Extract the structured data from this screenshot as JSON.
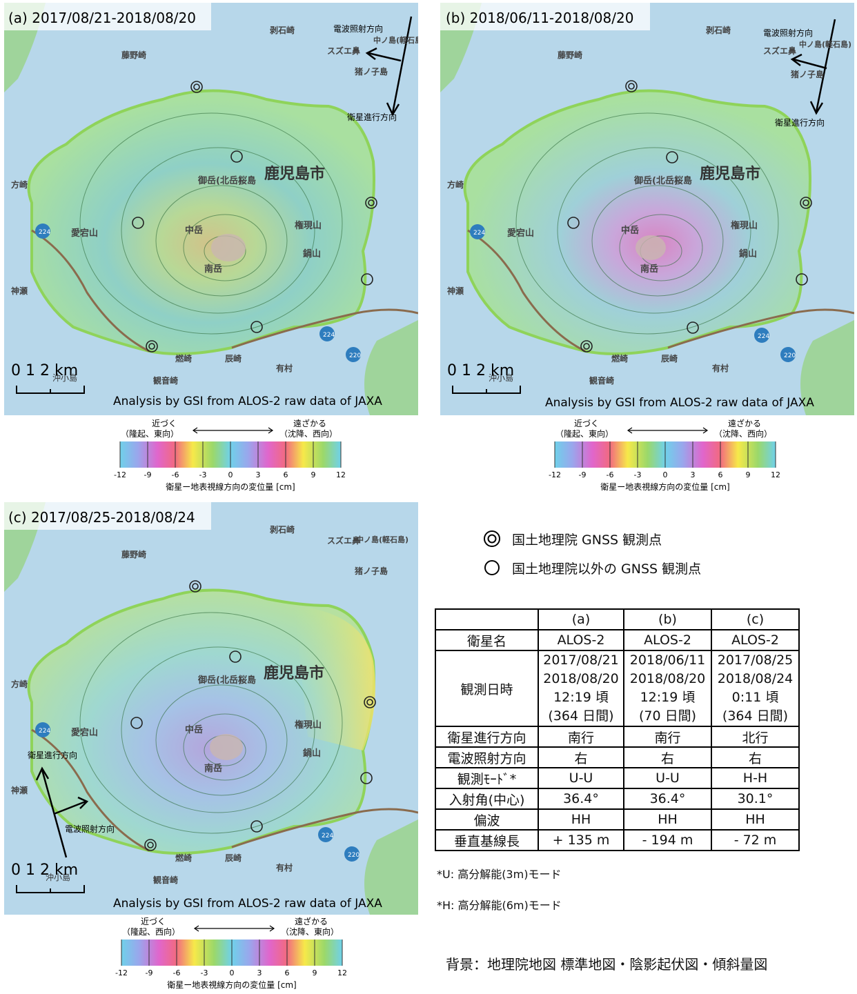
{
  "panels": [
    {
      "id": "a",
      "title": "(a) 2017/08/21-2018/08/20",
      "analysis_credit": "Analysis by GSI from ALOS-2 raw data of JAXA",
      "scale_label": "0  1  2 km",
      "sat_direction_label": "衛星進行方向",
      "radar_direction_label": "電波照射方向",
      "place_names": {
        "city": "鹿児島市",
        "kitadake": "御岳(北岳)",
        "sakurajima": "桜島",
        "nakadake": "中岳",
        "minamidake": "南岳",
        "gongenyama": "権現山",
        "nabeyama": "鍋山",
        "atagoyama": "愛宕山",
        "fujinosaki": "藤野崎",
        "sakiishizaki": "剥石崎",
        "suzue": "スズエ鼻",
        "nakanoshima": "中ノ島(軽石島)",
        "inokojima": "猪ノ子島",
        "hozaki": "方崎",
        "kamise": "神瀬",
        "tatsuzaki": "辰崎",
        "okikojima": "沖小島",
        "moe": "燃崎",
        "kannon": "観音崎",
        "arimura": "有村"
      },
      "route_labels": [
        "224",
        "224",
        "220"
      ],
      "colorbar": {
        "near_label": "近づく",
        "near_sub": "（隆起、東向）",
        "far_label": "遠ざかる",
        "far_sub": "（沈降、西向）",
        "ticks": [
          "-12",
          "-9",
          "-6",
          "-3",
          "0",
          "3",
          "6",
          "9",
          "12"
        ],
        "axis_label": "衛星ー地表視線方向の変位量 [cm]"
      }
    },
    {
      "id": "b",
      "title": "(b) 2018/06/11-2018/08/20",
      "analysis_credit": "Analysis by GSI from ALOS-2 raw data of JAXA",
      "scale_label": "0  1  2 km",
      "sat_direction_label": "衛星進行方向",
      "radar_direction_label": "電波照射方向",
      "place_names": {
        "city": "鹿児島市",
        "kitadake": "御岳(北岳)",
        "sakurajima": "桜島",
        "nakadake": "中岳",
        "minamidake": "南岳",
        "gongenyama": "権現山",
        "nabeyama": "鍋山",
        "atagoyama": "愛宕山",
        "fujinosaki": "藤野崎",
        "sakiishizaki": "剥石崎",
        "suzue": "スズエ鼻",
        "nakanoshima": "中ノ島(軽石島)",
        "inokojima": "猪ノ子島",
        "hozaki": "方崎",
        "kamise": "神瀬",
        "tatsuzaki": "辰崎",
        "okikojima": "沖小島",
        "moe": "燃崎",
        "kannon": "観音崎",
        "arimura": "有村"
      },
      "route_labels": [
        "224",
        "224",
        "220"
      ],
      "colorbar": {
        "near_label": "近づく",
        "near_sub": "（隆起、東向）",
        "far_label": "遠ざかる",
        "far_sub": "（沈降、西向）",
        "ticks": [
          "-12",
          "-9",
          "-6",
          "-3",
          "0",
          "3",
          "6",
          "9",
          "12"
        ],
        "axis_label": "衛星ー地表視線方向の変位量 [cm]"
      }
    },
    {
      "id": "c",
      "title": "(c) 2017/08/25-2018/08/24",
      "analysis_credit": "Analysis by GSI from ALOS-2 raw data of JAXA",
      "scale_label": "0  1  2 km",
      "sat_direction_label": "衛星進行方向",
      "radar_direction_label": "電波照射方向",
      "place_names": {
        "city": "鹿児島市",
        "kitadake": "御岳(北岳)",
        "sakurajima": "桜島",
        "nakadake": "中岳",
        "minamidake": "南岳",
        "gongenyama": "権現山",
        "nabeyama": "鍋山",
        "atagoyama": "愛宕山",
        "fujinosaki": "藤野崎",
        "sakiishizaki": "剥石崎",
        "suzue": "スズエ鼻",
        "nakanoshima": "中ノ島(軽石島)",
        "inokojima": "猪ノ子島",
        "hozaki": "方崎",
        "kamise": "神瀬",
        "tatsuzaki": "辰崎",
        "okikojima": "沖小島",
        "moe": "燃崎",
        "kannon": "観音崎",
        "arimura": "有村"
      },
      "route_labels": [
        "224",
        "224",
        "220"
      ],
      "colorbar": {
        "near_label": "近づく",
        "near_sub": "（隆起、西向）",
        "far_label": "遠ざかる",
        "far_sub": "（沈降、東向）",
        "ticks": [
          "-12",
          "-9",
          "-6",
          "-3",
          "0",
          "3",
          "6",
          "9",
          "12"
        ],
        "axis_label": "衛星ー地表視線方向の変位量 [cm]"
      }
    }
  ],
  "legend": {
    "gsi_station": "国土地理院 GNSS 観測点",
    "other_station": "国土地理院以外の GNSS 観測点"
  },
  "table": {
    "headers": [
      "",
      "(a)",
      "(b)",
      "(c)"
    ],
    "rows": [
      {
        "label": "衛星名",
        "values": [
          [
            "ALOS-2"
          ],
          [
            "ALOS-2"
          ],
          [
            "ALOS-2"
          ]
        ]
      },
      {
        "label": "観測日時",
        "values": [
          [
            "2017/08/21",
            "2018/08/20",
            "12:19 頃",
            "(364 日間)"
          ],
          [
            "2018/06/11",
            "2018/08/20",
            "12:19 頃",
            "(70 日間)"
          ],
          [
            "2017/08/25",
            "2018/08/24",
            "0:11 頃",
            "(364 日間)"
          ]
        ]
      },
      {
        "label": "衛星進行方向",
        "values": [
          [
            "南行"
          ],
          [
            "南行"
          ],
          [
            "北行"
          ]
        ]
      },
      {
        "label": "電波照射方向",
        "values": [
          [
            "右"
          ],
          [
            "右"
          ],
          [
            "右"
          ]
        ]
      },
      {
        "label": "観測ﾓｰﾄﾞ*",
        "values": [
          [
            "U-U"
          ],
          [
            "U-U"
          ],
          [
            "H-H"
          ]
        ]
      },
      {
        "label": "入射角(中心)",
        "values": [
          [
            "36.4°"
          ],
          [
            "36.4°"
          ],
          [
            "30.1°"
          ]
        ]
      },
      {
        "label": "偏波",
        "values": [
          [
            "HH"
          ],
          [
            "HH"
          ],
          [
            "HH"
          ]
        ]
      },
      {
        "label": "垂直基線長",
        "values": [
          [
            "+ 135 m"
          ],
          [
            "- 194 m"
          ],
          [
            "- 72 m"
          ]
        ]
      }
    ]
  },
  "notes": {
    "u_note": "*U: 高分解能(3m)モード",
    "h_note": "*H: 高分解能(6m)モード",
    "background": "背景：地理院地図 標準地図・陰影起伏図・傾斜量図"
  },
  "colors": {
    "sea": "#b7d7ea",
    "island_base": "#8fd3c8",
    "coast_green": "#8fd35a",
    "road_brown": "#8a6b4d",
    "contour": "#2f6b3a"
  }
}
